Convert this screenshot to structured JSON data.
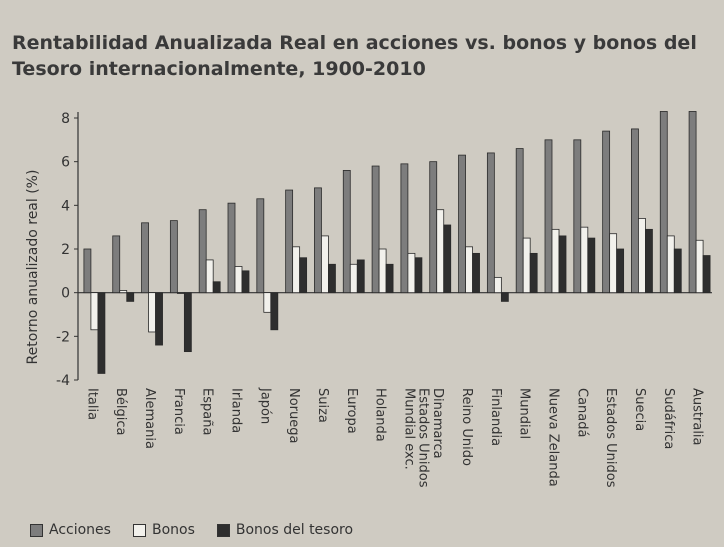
{
  "chart_data": {
    "type": "bar",
    "title": "Rentabilidad Anualizada Real en acciones vs. bonos y bonos del Tesoro internacionalmente, 1900-2010",
    "title_line1": "Rentabilidad Anualizada Real en acciones vs. bonos y bonos del",
    "title_line2": "Tesoro internacionalmente, 1900-2010",
    "xlabel": "",
    "ylabel": "Retorno anualizado real (%)",
    "ylim": [
      -4,
      8
    ],
    "yticks": [
      "8",
      "6",
      "4",
      "2",
      "0",
      "-2",
      "-4"
    ],
    "grid": false,
    "legend_position": "bottom",
    "categories": [
      [
        "Italia"
      ],
      [
        "Bélgica"
      ],
      [
        "Alemania"
      ],
      [
        "Francia"
      ],
      [
        "España"
      ],
      [
        "Irlanda"
      ],
      [
        "Japón"
      ],
      [
        "Noruega"
      ],
      [
        "Suiza"
      ],
      [
        "Europa"
      ],
      [
        "Holanda"
      ],
      [
        "Mundial exc.",
        "Estados Unidos"
      ],
      [
        "Dinamarca"
      ],
      [
        "Reino Unido"
      ],
      [
        "Finlandia"
      ],
      [
        "Mundial"
      ],
      [
        "Nueva Zelanda"
      ],
      [
        "Canadá"
      ],
      [
        "Estados Unidos"
      ],
      [
        "Suecia"
      ],
      [
        "Sudáfrica"
      ],
      [
        "Australia"
      ]
    ],
    "series": [
      {
        "name": "Acciones",
        "color": "#7d7d7d",
        "values": [
          2.0,
          2.6,
          3.2,
          3.3,
          3.8,
          4.1,
          4.3,
          4.7,
          4.8,
          5.6,
          5.8,
          5.9,
          6.0,
          6.3,
          6.4,
          6.6,
          7.0,
          7.0,
          7.4,
          7.5,
          8.3,
          8.3
        ]
      },
      {
        "name": "Bonos",
        "color": "#f2f1ec",
        "values": [
          -1.7,
          0.1,
          -1.8,
          0.0,
          1.5,
          1.2,
          -0.9,
          2.1,
          2.6,
          1.3,
          2.0,
          1.8,
          3.8,
          2.1,
          0.7,
          2.5,
          2.9,
          3.0,
          2.7,
          3.4,
          2.6,
          2.4
        ]
      },
      {
        "name": "Bonos del tesoro",
        "color": "#2e2e2e",
        "values": [
          -3.7,
          -0.4,
          -2.4,
          -2.7,
          0.5,
          1.0,
          -1.7,
          1.6,
          1.3,
          1.5,
          1.3,
          1.6,
          3.1,
          1.8,
          -0.4,
          1.8,
          2.6,
          2.5,
          2.0,
          2.9,
          2.0,
          1.7
        ]
      }
    ]
  }
}
